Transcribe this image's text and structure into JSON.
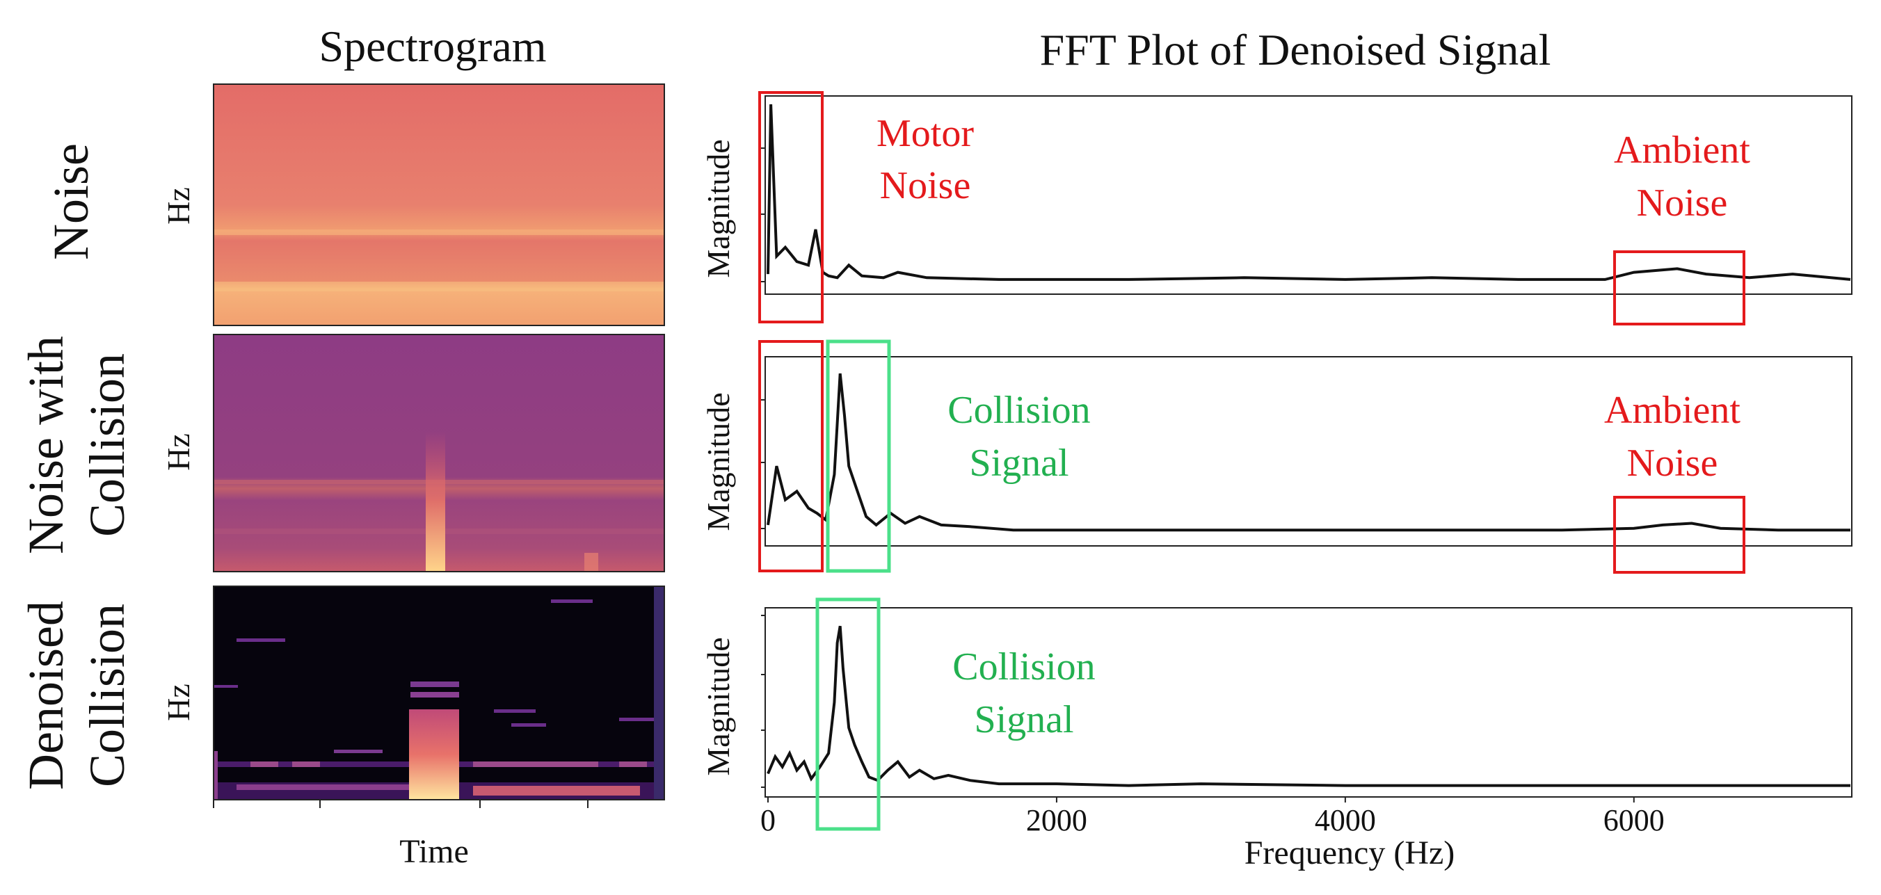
{
  "titles": {
    "spectrogram": "Spectrogram",
    "fft": "FFT Plot of Denoised Signal"
  },
  "row_labels": [
    {
      "lines": [
        "Noise"
      ]
    },
    {
      "lines": [
        "Noise with",
        "Collision"
      ]
    },
    {
      "lines": [
        "Denoised",
        "Collision"
      ]
    }
  ],
  "axis": {
    "spectro_ylabel": "Hz",
    "spectro_xlabel": "Time",
    "fft_ylabel": "Magnitude",
    "fft_xlabel": "Frequency (Hz)",
    "fft_xticks": [
      "0",
      "2000",
      "4000",
      "6000"
    ]
  },
  "annotations": {
    "motor_noise": [
      "Motor",
      "Noise"
    ],
    "ambient_noise": [
      "Ambient",
      "Noise"
    ],
    "collision_signal": [
      "Collision",
      "Signal"
    ]
  },
  "colors": {
    "noise_box": "#e41a1c",
    "signal_box": "#4be08a",
    "noise_text": "#e41a1c",
    "signal_text": "#22b050",
    "line": "#111111"
  },
  "chart_data": [
    {
      "type": "line",
      "panel": "Noise",
      "xlim": [
        0,
        7500
      ],
      "x": [
        0,
        20,
        60,
        120,
        200,
        280,
        330,
        380,
        420,
        480,
        560,
        650,
        800,
        900,
        1100,
        1600,
        2500,
        3300,
        4000,
        4600,
        5200,
        5800,
        6000,
        6300,
        6500,
        6800,
        7100,
        7500
      ],
      "y": [
        0.05,
        1.0,
        0.15,
        0.2,
        0.12,
        0.1,
        0.3,
        0.06,
        0.04,
        0.03,
        0.1,
        0.04,
        0.03,
        0.06,
        0.03,
        0.02,
        0.02,
        0.03,
        0.02,
        0.03,
        0.02,
        0.02,
        0.06,
        0.08,
        0.05,
        0.03,
        0.05,
        0.02
      ]
    },
    {
      "type": "line",
      "panel": "Noise with Collision",
      "xlim": [
        0,
        7500
      ],
      "x": [
        0,
        60,
        120,
        200,
        280,
        340,
        400,
        460,
        500,
        530,
        560,
        620,
        680,
        750,
        850,
        950,
        1050,
        1200,
        1400,
        1700,
        2500,
        3500,
        4500,
        5500,
        6000,
        6200,
        6400,
        6600,
        7000,
        7500
      ],
      "y": [
        0.05,
        0.4,
        0.2,
        0.25,
        0.15,
        0.12,
        0.08,
        0.35,
        0.95,
        0.7,
        0.4,
        0.25,
        0.1,
        0.05,
        0.12,
        0.06,
        0.1,
        0.05,
        0.04,
        0.02,
        0.02,
        0.02,
        0.02,
        0.02,
        0.03,
        0.05,
        0.06,
        0.03,
        0.02,
        0.02
      ]
    },
    {
      "type": "line",
      "panel": "Denoised Collision",
      "xlim": [
        0,
        7500
      ],
      "x": [
        0,
        50,
        100,
        150,
        200,
        250,
        300,
        360,
        420,
        460,
        480,
        500,
        520,
        560,
        600,
        650,
        700,
        760,
        830,
        900,
        980,
        1050,
        1150,
        1250,
        1400,
        1600,
        2000,
        2500,
        3000,
        4000,
        5000,
        6000,
        7000,
        7500
      ],
      "y": [
        0.08,
        0.18,
        0.12,
        0.2,
        0.1,
        0.15,
        0.05,
        0.12,
        0.2,
        0.5,
        0.85,
        0.95,
        0.7,
        0.35,
        0.25,
        0.15,
        0.06,
        0.04,
        0.1,
        0.15,
        0.06,
        0.1,
        0.05,
        0.07,
        0.04,
        0.02,
        0.02,
        0.01,
        0.02,
        0.01,
        0.01,
        0.01,
        0.01,
        0.01
      ]
    }
  ]
}
